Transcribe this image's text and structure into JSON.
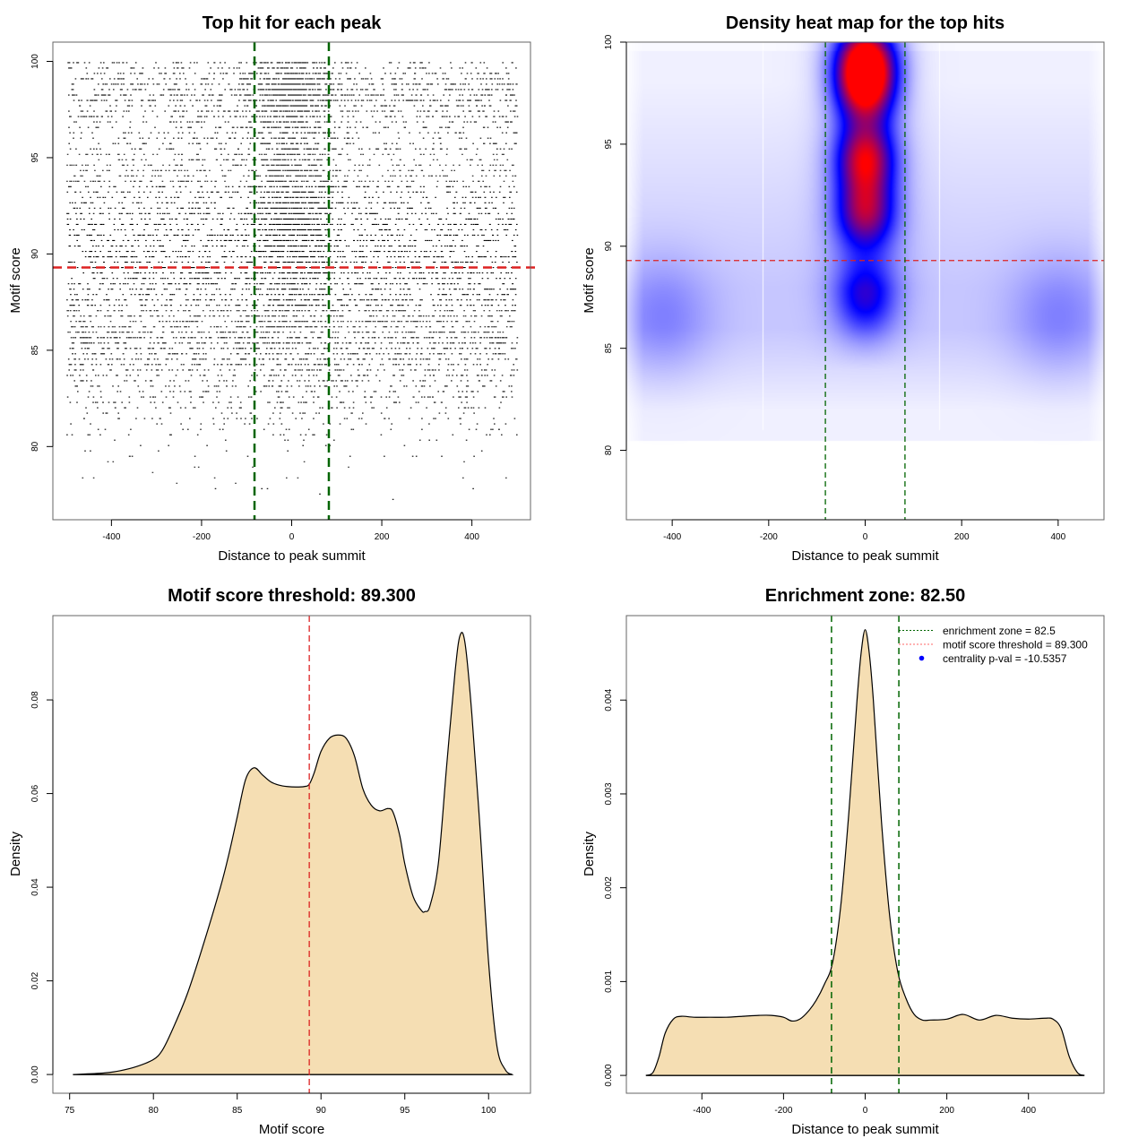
{
  "figure": {
    "background": "#ffffff",
    "panel_border_color": "#666666",
    "green_line_color": "#006400",
    "red_line_color": "#dd2222",
    "fill_color": "#f5deb3"
  },
  "chart_data": [
    {
      "id": "scatter",
      "type": "scatter",
      "title": "Top hit for each peak",
      "xlabel": "Distance to peak summit",
      "ylabel": "Motif score",
      "xlim": [
        -530,
        530
      ],
      "ylim": [
        76.2,
        101.0
      ],
      "xticks": [
        -400,
        -200,
        0,
        200,
        400
      ],
      "xtick_labels": [
        "-400",
        "-200",
        "0",
        "200",
        "400"
      ],
      "yticks": [
        80,
        85,
        90,
        95,
        100
      ],
      "ytick_labels": [
        "80",
        "85",
        "90",
        "95",
        "100"
      ],
      "x_range_of_points": [
        -500,
        500
      ],
      "y_range_of_points": [
        76.7,
        100
      ],
      "approx_point_count": 30000,
      "point_description": "Dense horizontal bands of points (discrete motif scores); density highest between 84 and 94, strong central enrichment near distance 0 for scores above 90",
      "vlines": [
        -82.5,
        82.5
      ],
      "hline": 89.3,
      "grid": false
    },
    {
      "id": "heatmap",
      "type": "heatmap",
      "title": "Density heat map for the top hits",
      "xlabel": "Distance to peak summit",
      "ylabel": "Motif score",
      "xlim": [
        -495,
        495
      ],
      "ylim": [
        76.6,
        100
      ],
      "xticks": [
        -400,
        -200,
        0,
        200,
        400
      ],
      "xtick_labels": [
        "-400",
        "-200",
        "0",
        "200",
        "400"
      ],
      "yticks": [
        80,
        85,
        90,
        95,
        100
      ],
      "ytick_labels": [
        "80",
        "85",
        "90",
        "95",
        "100"
      ],
      "colorscale": [
        "#ffffff",
        "#0000ff",
        "#ff0000"
      ],
      "hotspots": [
        {
          "x": 0,
          "y": 98.5,
          "intensity": 1.0,
          "label": "peak (red)"
        },
        {
          "x": 0,
          "y": 94.3,
          "intensity": 0.55
        },
        {
          "x": 0,
          "y": 91.7,
          "intensity": 0.45
        },
        {
          "x": 0,
          "y": 87.5,
          "intensity": 0.25
        },
        {
          "x": -420,
          "y": 86.6,
          "intensity": 0.14
        },
        {
          "x": 400,
          "y": 86.6,
          "intensity": 0.14
        }
      ],
      "vlines": [
        -82.5,
        82.5
      ],
      "hline": 89.3,
      "grid": false
    },
    {
      "id": "score_density",
      "type": "area",
      "title": "Motif score threshold: 89.300",
      "xlabel": "Motif score",
      "ylabel": "Density",
      "xlim": [
        74,
        102.5
      ],
      "ylim": [
        -0.004,
        0.098
      ],
      "xticks": [
        75,
        80,
        85,
        90,
        95,
        100
      ],
      "xtick_labels": [
        "75",
        "80",
        "85",
        "90",
        "95",
        "100"
      ],
      "yticks": [
        0.0,
        0.02,
        0.04,
        0.06,
        0.08
      ],
      "ytick_labels": [
        "0.00",
        "0.02",
        "0.04",
        "0.06",
        "0.08"
      ],
      "x": [
        75.2,
        77,
        78,
        79,
        80,
        80.5,
        81,
        82,
        83,
        84,
        84.5,
        85,
        85.5,
        86,
        86.5,
        87,
        87.5,
        88,
        88.5,
        89,
        89.3,
        89.6,
        90,
        90.5,
        91,
        91.5,
        92,
        92.5,
        93,
        93.5,
        94,
        94.3,
        94.7,
        95,
        95.5,
        96,
        96.2,
        96.5,
        97,
        97.5,
        98,
        98.3,
        98.6,
        99,
        99.5,
        100,
        100.5,
        101,
        101.4
      ],
      "y": [
        0.0,
        0.0003,
        0.0008,
        0.0017,
        0.0032,
        0.005,
        0.0085,
        0.017,
        0.028,
        0.04,
        0.047,
        0.055,
        0.063,
        0.0655,
        0.064,
        0.0625,
        0.0618,
        0.0615,
        0.0614,
        0.0615,
        0.062,
        0.0645,
        0.069,
        0.0718,
        0.0725,
        0.0718,
        0.068,
        0.061,
        0.0575,
        0.0563,
        0.0568,
        0.056,
        0.051,
        0.045,
        0.038,
        0.035,
        0.0348,
        0.036,
        0.045,
        0.066,
        0.086,
        0.0938,
        0.092,
        0.077,
        0.052,
        0.024,
        0.006,
        0.001,
        0.0
      ],
      "vline": 89.3,
      "grid": false
    },
    {
      "id": "distance_density",
      "type": "area",
      "title": "Enrichment zone: 82.50",
      "xlabel": "Distance to peak summit",
      "ylabel": "Density",
      "xlim": [
        -585,
        585
      ],
      "ylim": [
        -0.00019,
        0.0049
      ],
      "xticks": [
        -400,
        -200,
        0,
        200,
        400
      ],
      "xtick_labels": [
        "-400",
        "-200",
        "0",
        "200",
        "400"
      ],
      "yticks": [
        0.0,
        0.001,
        0.002,
        0.003,
        0.004
      ],
      "ytick_labels": [
        "0.000",
        "0.001",
        "0.002",
        "0.003",
        "0.004"
      ],
      "x": [
        -537,
        -520,
        -505,
        -490,
        -470,
        -450,
        -420,
        -380,
        -340,
        -300,
        -260,
        -230,
        -200,
        -180,
        -160,
        -140,
        -120,
        -100,
        -80,
        -60,
        -40,
        -20,
        -10,
        0,
        10,
        20,
        40,
        60,
        80,
        100,
        120,
        140,
        160,
        200,
        240,
        280,
        320,
        360,
        400,
        440,
        460,
        480,
        500,
        520,
        537
      ],
      "y": [
        0.0,
        3e-05,
        0.0002,
        0.00045,
        0.0006,
        0.00063,
        0.00062,
        0.00062,
        0.00062,
        0.00063,
        0.00064,
        0.00064,
        0.00062,
        0.00058,
        0.0006,
        0.00068,
        0.0008,
        0.00097,
        0.0012,
        0.0018,
        0.0028,
        0.004,
        0.0045,
        0.00475,
        0.0045,
        0.004,
        0.0027,
        0.0017,
        0.0011,
        0.00082,
        0.00065,
        0.00059,
        0.00059,
        0.0006,
        0.00065,
        0.00059,
        0.00064,
        0.00061,
        0.0006,
        0.00061,
        0.0006,
        0.0005,
        0.0002,
        3e-05,
        0.0
      ],
      "vlines": [
        -82.5,
        82.5
      ],
      "legend": {
        "position": "top-right",
        "entries": [
          {
            "label": "enrichment zone = 82.5",
            "style": "dotted-line",
            "color": "#006400"
          },
          {
            "label": "motif score threshold = 89.300",
            "style": "dotted-line",
            "color": "#ff6666"
          },
          {
            "label": "centrality p-val = -10.5357",
            "style": "dot",
            "color": "#0000ff"
          }
        ]
      },
      "grid": false
    }
  ]
}
